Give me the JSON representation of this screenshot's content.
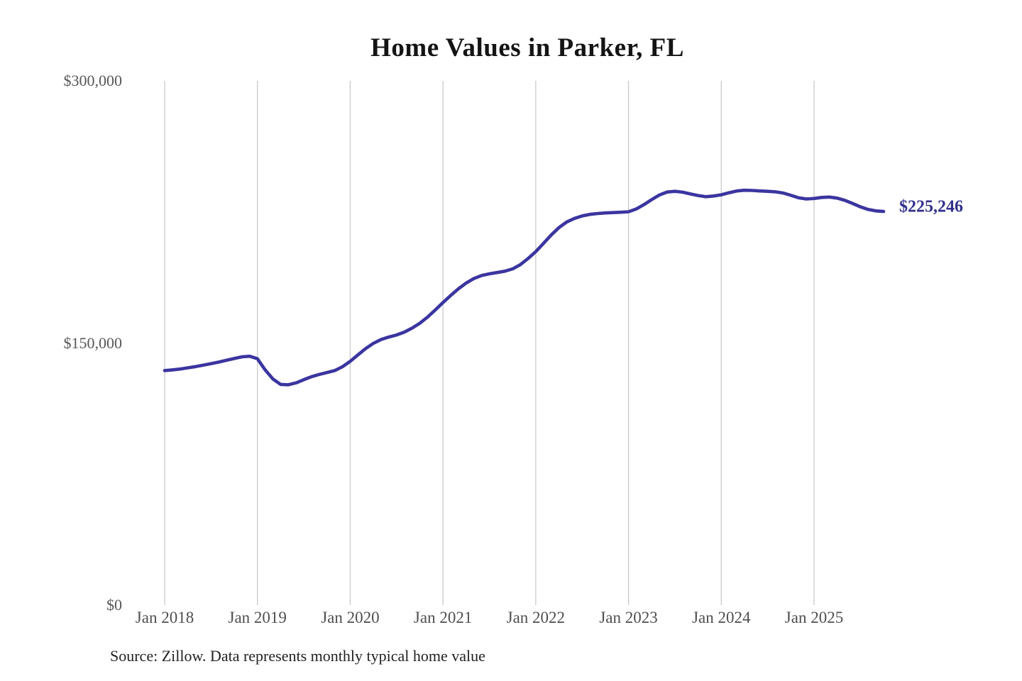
{
  "title": "Home Values in Parker, FL",
  "source_note": "Source: Zillow. Data represents monthly typical home value",
  "end_label": "$225,246",
  "colors": {
    "line": "#3b35a0",
    "end_label": "#32308c",
    "grid": "#c9c9c9",
    "tick_label": "#575757",
    "title": "#141414",
    "source": "#222222",
    "background": "#ffffff"
  },
  "chart_data": {
    "type": "line",
    "title": "Home Values in Parker, FL",
    "xlabel": "",
    "ylabel": "",
    "x_interval": "monthly",
    "x_start": "Jan 2018",
    "x_end": "Oct 2025",
    "x_tick_labels": [
      "Jan 2018",
      "Jan 2019",
      "Jan 2020",
      "Jan 2021",
      "Jan 2022",
      "Jan 2023",
      "Jan 2024",
      "Jan 2025"
    ],
    "y_tick_labels": [
      "$0",
      "$150,000",
      "$300,000"
    ],
    "y_ticks": [
      0,
      150000,
      300000
    ],
    "ylim": [
      0,
      300000
    ],
    "grid": "vertical-only",
    "legend": false,
    "end_value": 225246,
    "end_value_label": "$225,246",
    "values": [
      134200,
      134600,
      135100,
      135800,
      136500,
      137300,
      138200,
      139100,
      140100,
      141100,
      142100,
      142400,
      141000,
      134600,
      129400,
      126300,
      126100,
      127200,
      129000,
      130700,
      132000,
      133100,
      134200,
      136400,
      139500,
      143200,
      146800,
      149800,
      152000,
      153400,
      154600,
      156200,
      158500,
      161300,
      164800,
      168900,
      173100,
      177200,
      181000,
      184300,
      186900,
      188600,
      189600,
      190300,
      191100,
      192400,
      194800,
      198300,
      202300,
      207000,
      211800,
      216000,
      219200,
      221300,
      222700,
      223600,
      224100,
      224400,
      224600,
      224800,
      225100,
      226700,
      229200,
      232100,
      234700,
      236400,
      236800,
      236300,
      235300,
      234400,
      233700,
      234100,
      234800,
      236000,
      237000,
      237400,
      237300,
      237000,
      236800,
      236500,
      235800,
      234500,
      233100,
      232400,
      232700,
      233300,
      233500,
      232900,
      231600,
      229800,
      227900,
      226400,
      225600,
      225246
    ]
  }
}
